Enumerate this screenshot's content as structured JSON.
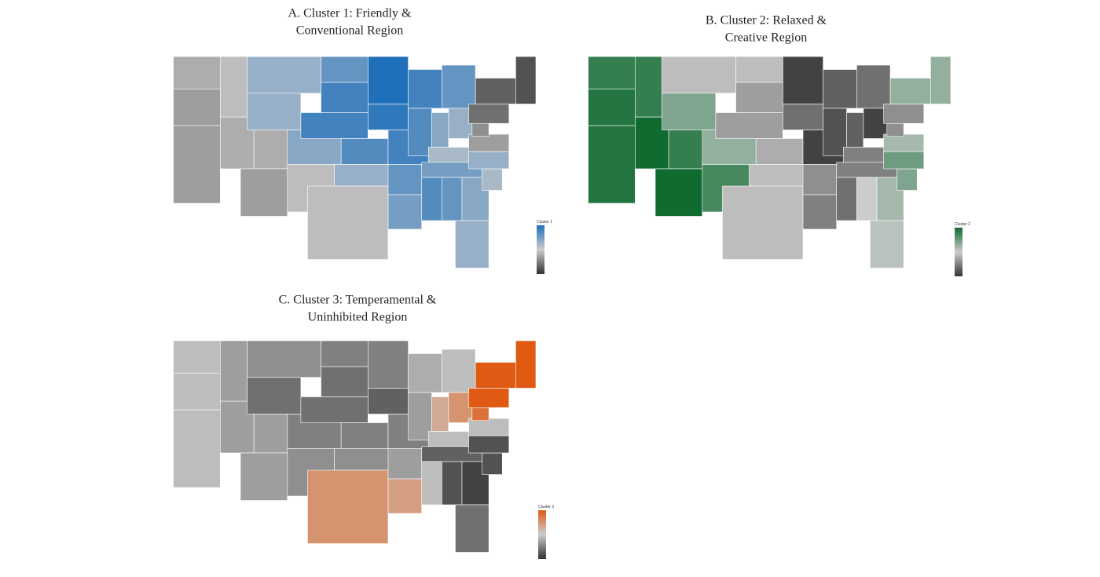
{
  "panels": [
    {
      "title_lines": [
        "A. Cluster 1: Friendly &",
        "Conventional Region"
      ],
      "legend_title": "Cluster 1",
      "color": "#1f6fba"
    },
    {
      "title_lines": [
        "B. Cluster 2: Relaxed &",
        "Creative Region"
      ],
      "legend_title": "Cluster 2",
      "color": "#0f6b30"
    },
    {
      "title_lines": [
        "C. Cluster 3: Temperamental &",
        "Uninhibited Region"
      ],
      "legend_title": "Cluster 3",
      "color": "#e05a14"
    }
  ]
}
